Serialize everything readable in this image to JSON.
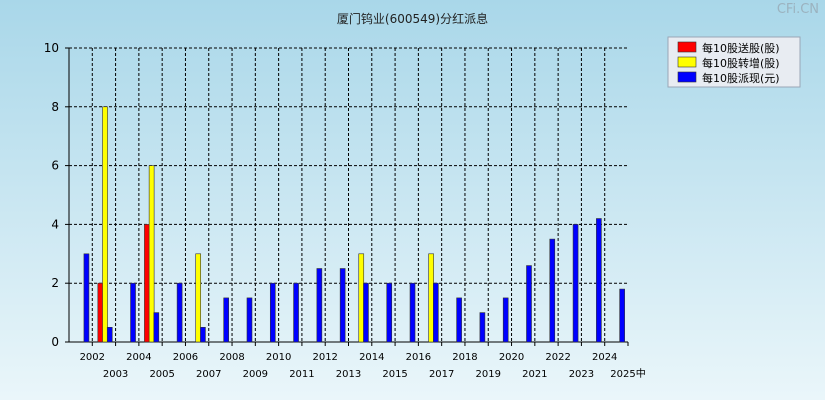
{
  "watermark": "CFi.CN",
  "chart_data": {
    "type": "bar",
    "title": "厦门钨业(600549)分红派息",
    "xlabel": "",
    "ylabel": "",
    "ylim": [
      0,
      10
    ],
    "yticks": [
      0,
      2,
      4,
      6,
      8,
      10
    ],
    "grid": true,
    "legend_position": "top-right",
    "x_labels": [
      "2002",
      "2003",
      "2004",
      "2005",
      "2006",
      "2007",
      "2008",
      "2009",
      "2010",
      "2011",
      "2012",
      "2013",
      "2014",
      "2015",
      "2016",
      "2017",
      "2018",
      "2019",
      "2020",
      "2021",
      "2022",
      "2023",
      "2024",
      "2025中"
    ],
    "series": [
      {
        "name": "每10股送股(股)",
        "color": "#ff0000",
        "points": [
          {
            "x": 2003,
            "value": 2
          },
          {
            "x": 2005,
            "value": 4
          }
        ]
      },
      {
        "name": "每10股转增(股)",
        "color": "#ffff00",
        "points": [
          {
            "x": 2003,
            "value": 8
          },
          {
            "x": 2005,
            "value": 6
          },
          {
            "x": 2007,
            "value": 3
          },
          {
            "x": 2014,
            "value": 3
          },
          {
            "x": 2017,
            "value": 3
          }
        ]
      },
      {
        "name": "每10股派现(元)",
        "color": "#0000ff",
        "points": [
          {
            "x": 2002,
            "value": 3
          },
          {
            "x": 2003,
            "value": 0.5
          },
          {
            "x": 2004,
            "value": 2
          },
          {
            "x": 2005,
            "value": 1
          },
          {
            "x": 2006,
            "value": 2
          },
          {
            "x": 2007,
            "value": 0.5
          },
          {
            "x": 2008,
            "value": 1.5
          },
          {
            "x": 2009,
            "value": 1.5
          },
          {
            "x": 2010,
            "value": 2
          },
          {
            "x": 2011,
            "value": 2
          },
          {
            "x": 2012,
            "value": 2.5
          },
          {
            "x": 2013,
            "value": 2.5
          },
          {
            "x": 2014,
            "value": 2
          },
          {
            "x": 2015,
            "value": 2
          },
          {
            "x": 2016,
            "value": 2
          },
          {
            "x": 2017,
            "value": 2
          },
          {
            "x": 2018,
            "value": 1.5
          },
          {
            "x": 2019,
            "value": 1
          },
          {
            "x": 2020,
            "value": 1.5
          },
          {
            "x": 2021,
            "value": 2.6
          },
          {
            "x": 2022,
            "value": 3.5
          },
          {
            "x": 2023,
            "value": 4
          },
          {
            "x": 2024,
            "value": 4.2
          },
          {
            "x": 2025,
            "value": 1.8
          }
        ]
      }
    ]
  }
}
